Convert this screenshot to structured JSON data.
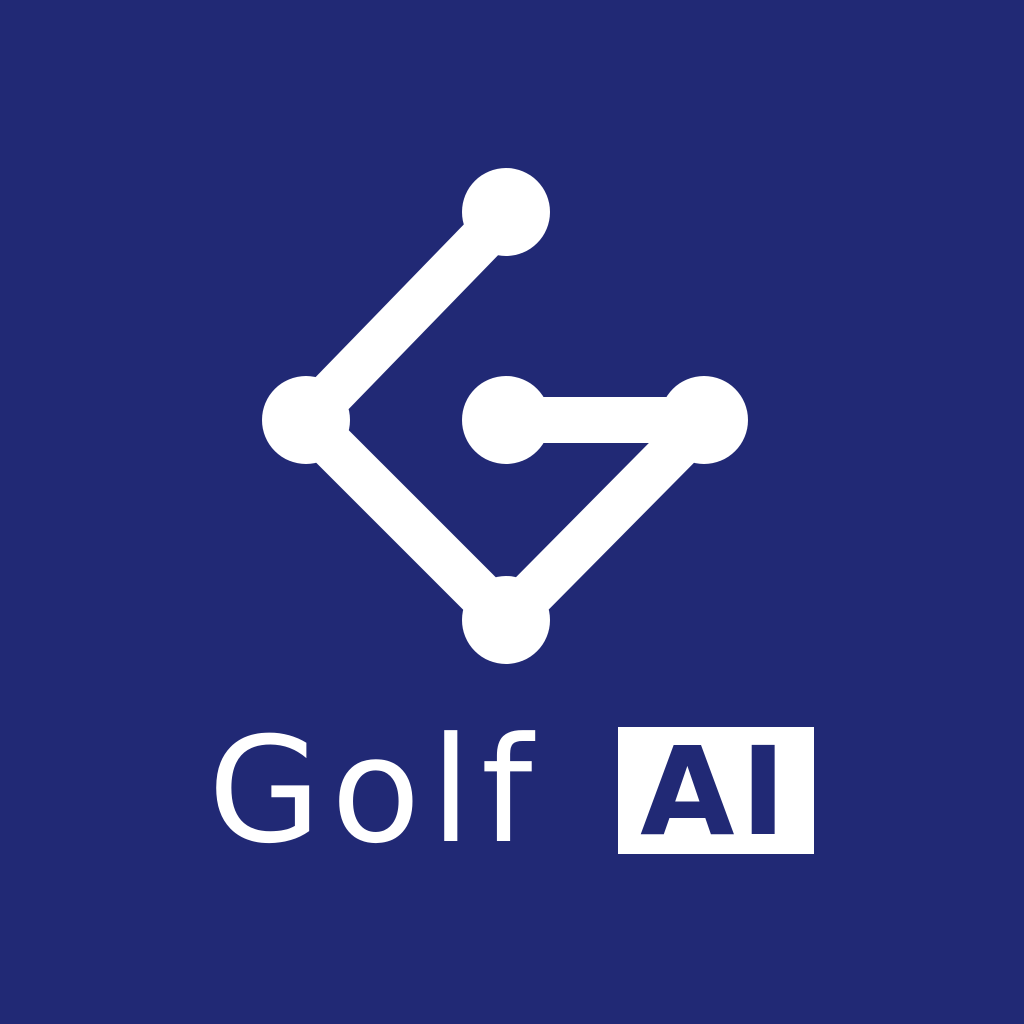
{
  "brand": {
    "name": "Golf",
    "badge": "AI",
    "icon_name": "network-g-logo-icon"
  },
  "colors": {
    "background": "#212975",
    "foreground": "#ffffff"
  }
}
